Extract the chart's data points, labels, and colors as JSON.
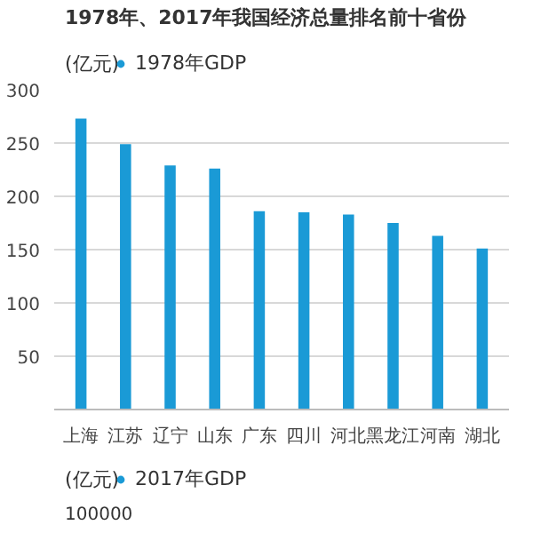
{
  "chart_data": [
    {
      "type": "bar",
      "title": "1978年、2017年我国经济总量排名前十省份",
      "ylabel": "(亿元)",
      "categories": [
        "上海",
        "江苏",
        "辽宁",
        "山东",
        "广东",
        "四川",
        "河北",
        "黑龙江",
        "河南",
        "湖北"
      ],
      "series": [
        {
          "name": "1978年GDP",
          "color": "#1a9ad6",
          "values": [
            273,
            249,
            229,
            226,
            186,
            185,
            183,
            175,
            163,
            151
          ]
        }
      ],
      "ylim": [
        0,
        300
      ],
      "yticks": [
        50,
        100,
        150,
        200,
        250,
        300
      ],
      "grid": "y",
      "legend": "top left"
    },
    {
      "type": "other",
      "ylabel": "(亿元)",
      "series": [
        {
          "name": "2017年GDP",
          "color": "#1a9ad6"
        }
      ],
      "annotations": [
        "100000"
      ],
      "legend": "top left"
    }
  ]
}
